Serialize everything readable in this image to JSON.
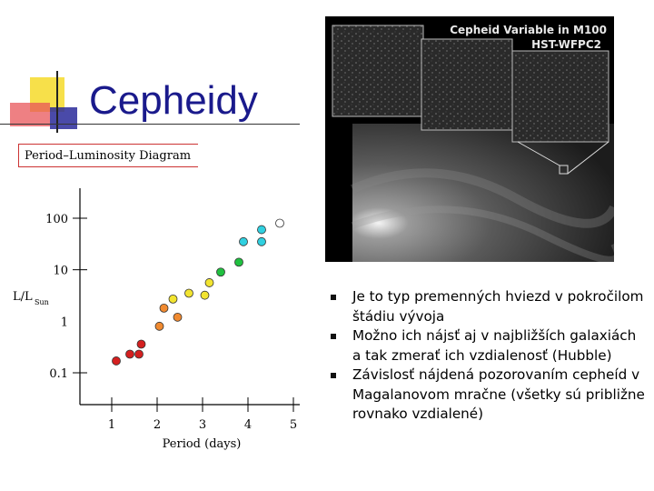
{
  "slide": {
    "title": "Cepheidy",
    "colors": {
      "title": "#1a1a8c",
      "deco_yellow": "#f7e04a",
      "deco_red": "#e8555a",
      "deco_blue": "#2a2a9a"
    }
  },
  "photo": {
    "caption_line1": "Cepheid Variable in M100",
    "caption_line2": "HST-WFPC2"
  },
  "bullets": [
    "Je to typ premenných hviezd v pokročilom štádiu vývoja",
    "Možno ich nájsť aj v najbližších galaxiách a tak zmerať ich vzdialenosť (Hubble)",
    "Závislosť nájdená pozorovaním cepheíd v Magalanovom mračne (všetky sú približne rovnako vzdialené)"
  ],
  "chart_data": {
    "type": "scatter",
    "title": "Period–Luminosity Diagram",
    "xlabel": "Period (days)",
    "ylabel_main": "L/L",
    "ylabel_sub": "Sun",
    "x_ticks": [
      "1",
      "2",
      "3",
      "4",
      "5"
    ],
    "y_ticks": [
      "100",
      "10",
      "1",
      "0.1"
    ],
    "y_scale": "log",
    "xlim": [
      0.95,
      5.05
    ],
    "ylim": [
      0.05,
      250
    ],
    "points": [
      {
        "x": 1.1,
        "y": 0.17,
        "color": "#d42020"
      },
      {
        "x": 1.4,
        "y": 0.23,
        "color": "#d42020"
      },
      {
        "x": 1.6,
        "y": 0.23,
        "color": "#d42020"
      },
      {
        "x": 1.65,
        "y": 0.36,
        "color": "#d42020"
      },
      {
        "x": 2.05,
        "y": 0.8,
        "color": "#f08a30"
      },
      {
        "x": 2.15,
        "y": 1.8,
        "color": "#f08a30"
      },
      {
        "x": 2.45,
        "y": 1.2,
        "color": "#f08a30"
      },
      {
        "x": 2.35,
        "y": 2.7,
        "color": "#f2e430"
      },
      {
        "x": 2.7,
        "y": 3.5,
        "color": "#f2e430"
      },
      {
        "x": 3.05,
        "y": 3.2,
        "color": "#f2e430"
      },
      {
        "x": 3.15,
        "y": 5.6,
        "color": "#f2e430"
      },
      {
        "x": 3.4,
        "y": 9.0,
        "color": "#20c040"
      },
      {
        "x": 3.8,
        "y": 14.0,
        "color": "#20c040"
      },
      {
        "x": 3.9,
        "y": 35.0,
        "color": "#30d0e0"
      },
      {
        "x": 4.3,
        "y": 35.0,
        "color": "#30d0e0"
      },
      {
        "x": 4.3,
        "y": 60.0,
        "color": "#30d0e0"
      },
      {
        "x": 4.7,
        "y": 80.0,
        "color": "#ffffff"
      }
    ]
  }
}
